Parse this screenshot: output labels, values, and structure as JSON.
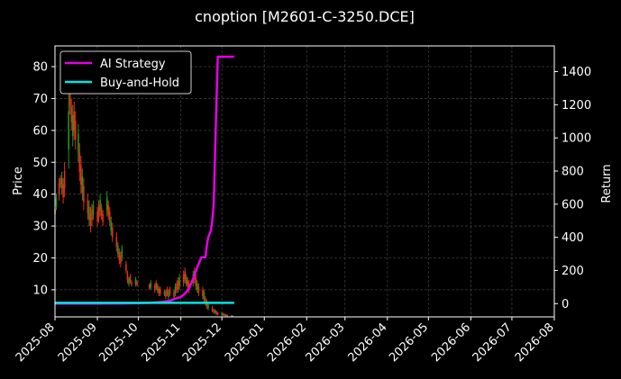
{
  "chart_data": {
    "type": "line",
    "title": "cnoption [M2601-C-3250.DCE]",
    "ylabel": "Price",
    "y2label": "Return",
    "xlim": [
      "2025-08-01",
      "2026-08-01"
    ],
    "ylim": [
      1.5,
      86.5
    ],
    "y2lim": [
      -80,
      1555
    ],
    "x_ticks": [
      "2025-08",
      "2025-09",
      "2025-10",
      "2025-11",
      "2025-12",
      "2026-01",
      "2026-02",
      "2026-03",
      "2026-04",
      "2026-05",
      "2026-06",
      "2026-07",
      "2026-08"
    ],
    "y_ticks": [
      10,
      20,
      30,
      40,
      50,
      60,
      70,
      80
    ],
    "y2_ticks": [
      0,
      200,
      400,
      600,
      800,
      1000,
      1200,
      1400
    ],
    "grid": true,
    "legend_position": "top-left",
    "colors": {
      "background": "#000000",
      "strategy": "#e600e6",
      "buyhold": "#00e5e5",
      "up": "#e62e1a",
      "down": "#1a9a1a",
      "grid": "#3a3a3a"
    },
    "series": [
      {
        "name": "AI Strategy",
        "axis": "right",
        "points": [
          [
            "2025-08-01",
            0
          ],
          [
            "2025-09-01",
            0
          ],
          [
            "2025-09-20",
            1
          ],
          [
            "2025-10-01",
            3
          ],
          [
            "2025-10-10",
            5
          ],
          [
            "2025-10-15",
            8
          ],
          [
            "2025-10-20",
            12
          ],
          [
            "2025-10-25",
            20
          ],
          [
            "2025-10-28",
            30
          ],
          [
            "2025-11-01",
            40
          ],
          [
            "2025-11-04",
            60
          ],
          [
            "2025-11-07",
            90
          ],
          [
            "2025-11-10",
            150
          ],
          [
            "2025-11-13",
            220
          ],
          [
            "2025-11-16",
            280
          ],
          [
            "2025-11-19",
            280
          ],
          [
            "2025-11-20",
            350
          ],
          [
            "2025-11-21",
            400
          ],
          [
            "2025-11-23",
            440
          ],
          [
            "2025-11-24",
            500
          ],
          [
            "2025-11-25",
            600
          ],
          [
            "2025-11-26",
            900
          ],
          [
            "2025-11-27",
            1200
          ],
          [
            "2025-11-28",
            1490
          ],
          [
            "2025-12-10",
            1490
          ]
        ]
      },
      {
        "name": "Buy-and-Hold",
        "axis": "right",
        "points": [
          [
            "2025-08-01",
            5
          ],
          [
            "2025-12-10",
            5
          ]
        ]
      }
    ],
    "candles": [
      [
        "2025-08-01",
        33,
        36
      ],
      [
        "2025-08-02",
        35,
        40
      ],
      [
        "2025-08-04",
        38,
        45
      ],
      [
        "2025-08-05",
        42,
        46
      ],
      [
        "2025-08-06",
        40,
        47
      ],
      [
        "2025-08-07",
        37,
        45
      ],
      [
        "2025-08-08",
        39,
        50
      ],
      [
        "2025-08-11",
        48,
        72
      ],
      [
        "2025-08-12",
        65,
        75
      ],
      [
        "2025-08-13",
        60,
        70
      ],
      [
        "2025-08-14",
        55,
        68
      ],
      [
        "2025-08-15",
        57,
        69
      ],
      [
        "2025-08-16",
        54,
        66
      ],
      [
        "2025-08-18",
        50,
        62
      ],
      [
        "2025-08-19",
        44,
        56
      ],
      [
        "2025-08-20",
        40,
        52
      ],
      [
        "2025-08-21",
        38,
        48
      ],
      [
        "2025-08-22",
        35,
        45
      ],
      [
        "2025-08-25",
        32,
        40
      ],
      [
        "2025-08-26",
        30,
        38
      ],
      [
        "2025-08-27",
        28,
        36
      ],
      [
        "2025-08-28",
        30,
        37
      ],
      [
        "2025-08-29",
        32,
        38
      ],
      [
        "2025-09-01",
        30,
        36
      ],
      [
        "2025-09-02",
        31,
        38
      ],
      [
        "2025-09-03",
        33,
        40
      ],
      [
        "2025-09-04",
        32,
        37
      ],
      [
        "2025-09-05",
        30,
        35
      ],
      [
        "2025-09-08",
        33,
        41
      ],
      [
        "2025-09-09",
        32,
        38
      ],
      [
        "2025-09-10",
        30,
        36
      ],
      [
        "2025-09-11",
        27,
        33
      ],
      [
        "2025-09-12",
        25,
        31
      ],
      [
        "2025-09-15",
        22,
        28
      ],
      [
        "2025-09-16",
        20,
        25
      ],
      [
        "2025-09-17",
        18,
        23
      ],
      [
        "2025-09-18",
        17,
        22
      ],
      [
        "2025-09-19",
        19,
        24
      ],
      [
        "2025-09-22",
        15,
        19
      ],
      [
        "2025-09-23",
        12,
        16
      ],
      [
        "2025-09-24",
        11,
        14
      ],
      [
        "2025-09-25",
        12,
        15
      ],
      [
        "2025-09-26",
        11,
        13
      ],
      [
        "2025-09-29",
        11,
        14
      ],
      [
        "2025-09-30",
        11,
        13
      ],
      [
        "2025-10-09",
        10,
        12
      ],
      [
        "2025-10-10",
        10,
        13
      ],
      [
        "2025-10-13",
        9,
        12
      ],
      [
        "2025-10-14",
        10,
        13
      ],
      [
        "2025-10-15",
        9,
        12
      ],
      [
        "2025-10-16",
        8,
        11
      ],
      [
        "2025-10-17",
        8,
        11
      ],
      [
        "2025-10-20",
        8,
        10
      ],
      [
        "2025-10-21",
        7,
        10
      ],
      [
        "2025-10-22",
        8,
        11
      ],
      [
        "2025-10-23",
        7,
        10
      ],
      [
        "2025-10-24",
        8,
        11
      ],
      [
        "2025-10-27",
        7,
        10
      ],
      [
        "2025-10-28",
        8,
        12
      ],
      [
        "2025-10-29",
        9,
        13
      ],
      [
        "2025-10-30",
        9,
        14
      ],
      [
        "2025-10-31",
        10,
        15
      ],
      [
        "2025-11-03",
        11,
        16
      ],
      [
        "2025-11-04",
        12,
        17
      ],
      [
        "2025-11-05",
        11,
        15
      ],
      [
        "2025-11-06",
        10,
        14
      ],
      [
        "2025-11-07",
        9,
        13
      ],
      [
        "2025-11-10",
        11,
        16
      ],
      [
        "2025-11-11",
        12,
        17
      ],
      [
        "2025-11-12",
        10,
        15
      ],
      [
        "2025-11-13",
        9,
        13
      ],
      [
        "2025-11-14",
        8,
        12
      ],
      [
        "2025-11-17",
        7,
        11
      ],
      [
        "2025-11-18",
        6,
        10
      ],
      [
        "2025-11-19",
        5,
        8
      ],
      [
        "2025-11-20",
        4,
        7
      ],
      [
        "2025-11-21",
        3.5,
        6
      ],
      [
        "2025-11-24",
        3,
        5
      ],
      [
        "2025-11-25",
        2.5,
        4
      ],
      [
        "2025-11-26",
        2.5,
        4
      ],
      [
        "2025-11-27",
        2,
        3.5
      ],
      [
        "2025-11-28",
        2,
        3
      ],
      [
        "2025-12-01",
        1.8,
        3
      ],
      [
        "2025-12-02",
        1.8,
        2.8
      ],
      [
        "2025-12-03",
        1.7,
        2.5
      ],
      [
        "2025-12-04",
        1.6,
        2.4
      ],
      [
        "2025-12-05",
        1.6,
        2.2
      ],
      [
        "2025-12-08",
        1.5,
        2
      ],
      [
        "2025-12-09",
        1.5,
        2
      ]
    ]
  }
}
